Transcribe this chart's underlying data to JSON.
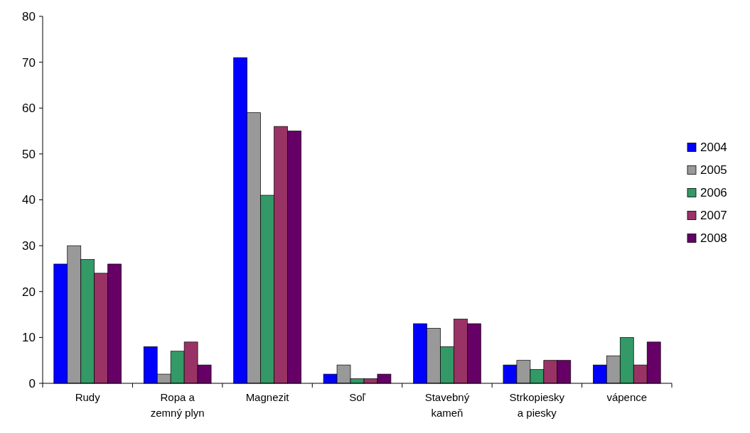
{
  "chart_data": {
    "type": "bar",
    "categories": [
      "Rudy",
      "Ropa a zemný plyn",
      "Magnezit",
      "Soľ",
      "Stavebný kameň",
      "Strkopiesky a piesky",
      "vápence"
    ],
    "series": [
      {
        "name": "2004",
        "color": "#0000ff",
        "values": [
          26,
          8,
          71,
          2,
          13,
          4,
          4
        ]
      },
      {
        "name": "2005",
        "color": "#999999",
        "values": [
          30,
          2,
          59,
          4,
          12,
          5,
          6
        ]
      },
      {
        "name": "2006",
        "color": "#339966",
        "values": [
          27,
          7,
          41,
          1,
          8,
          3,
          10
        ]
      },
      {
        "name": "2007",
        "color": "#993366",
        "values": [
          24,
          9,
          56,
          1,
          14,
          5,
          4
        ]
      },
      {
        "name": "2008",
        "color": "#660066",
        "values": [
          26,
          4,
          55,
          2,
          13,
          5,
          9
        ]
      }
    ],
    "ylim": [
      0,
      80
    ],
    "yticks": [
      0,
      10,
      20,
      30,
      40,
      50,
      60,
      70,
      80
    ],
    "grid": false,
    "legend": "right"
  }
}
